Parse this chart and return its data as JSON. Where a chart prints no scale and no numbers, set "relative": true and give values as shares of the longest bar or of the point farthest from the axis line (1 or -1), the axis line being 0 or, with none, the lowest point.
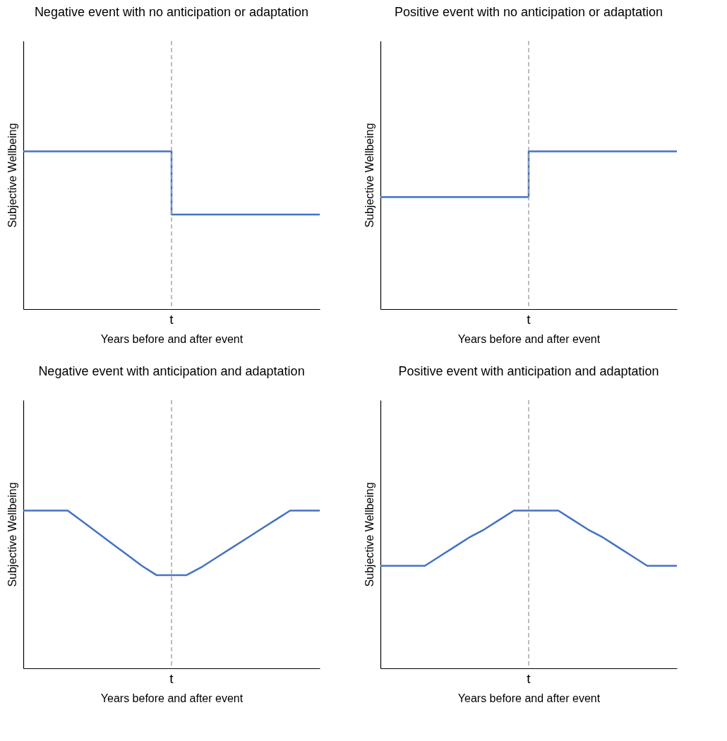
{
  "chart_data": [
    {
      "type": "step",
      "title": "Negative event with no anticipation or adaptation",
      "xlabel": "Years before and after event",
      "ylabel": "Subjective Wellbeing",
      "relative": true,
      "categories": [
        null,
        null,
        null,
        null,
        null,
        null,
        null,
        null,
        null,
        null,
        null,
        null,
        null,
        null,
        null,
        null,
        null,
        null,
        null,
        null,
        null
      ],
      "values": [
        1,
        1,
        1,
        1,
        1,
        1,
        1,
        1,
        1,
        1,
        0.6,
        0.6,
        0.6,
        0.6,
        0.6,
        0.6,
        0.6,
        0.6,
        0.6,
        0.6,
        0.6
      ],
      "color": "#4472c4",
      "tick_labels": false,
      "annotations": [
        "t"
      ],
      "marker": "none",
      "line_style": "solid"
    },
    {
      "type": "step",
      "title": "Positive event with no anticipation or adaptation",
      "xlabel": "Years before and after event",
      "ylabel": "Subjective Wellbeing",
      "relative": true,
      "categories": [
        null,
        null,
        null,
        null,
        null,
        null,
        null,
        null,
        null,
        null,
        null,
        null,
        null,
        null,
        null,
        null,
        null,
        null,
        null,
        null,
        null
      ],
      "values": [
        0.71,
        0.71,
        0.71,
        0.71,
        0.71,
        0.71,
        0.71,
        0.71,
        0.71,
        0.71,
        1,
        1,
        1,
        1,
        1,
        1,
        1,
        1,
        1,
        1,
        1
      ],
      "color": "#4472c4",
      "tick_labels": false,
      "annotations": [
        "t"
      ],
      "marker": "none",
      "line_style": "solid"
    },
    {
      "type": "line",
      "title": "Negative event with anticipation and adaptation",
      "xlabel": "Years before and after event",
      "ylabel": "Subjective Wellbeing",
      "relative": true,
      "categories": [
        null,
        null,
        null,
        null,
        null,
        null,
        null,
        null,
        null,
        null,
        null,
        null,
        null,
        null,
        null,
        null,
        null,
        null,
        null,
        null,
        null
      ],
      "values": [
        1,
        1,
        1,
        1,
        0.93,
        0.86,
        0.79,
        0.72,
        0.65,
        0.59,
        0.59,
        0.59,
        0.64,
        0.7,
        0.76,
        0.82,
        0.88,
        0.94,
        1,
        1,
        1
      ],
      "color": "#4472c4",
      "tick_labels": false,
      "annotations": [
        "t"
      ],
      "marker": "none",
      "line_style": "solid"
    },
    {
      "type": "line",
      "title": "Positive event with anticipation and adaptation",
      "xlabel": "Years before and after event",
      "ylabel": "Subjective Wellbeing",
      "relative": true,
      "categories": [
        null,
        null,
        null,
        null,
        null,
        null,
        null,
        null,
        null,
        null,
        null,
        null,
        null,
        null,
        null,
        null,
        null,
        null,
        null,
        null,
        null
      ],
      "values": [
        0.65,
        0.65,
        0.65,
        0.65,
        0.71,
        0.77,
        0.83,
        0.88,
        0.94,
        1,
        1,
        1,
        1,
        0.94,
        0.88,
        0.83,
        0.77,
        0.71,
        0.65,
        0.65,
        0.65
      ],
      "color": "#4472c4",
      "tick_labels": false,
      "annotations": [
        "t"
      ],
      "marker": "none",
      "line_style": "solid"
    }
  ]
}
